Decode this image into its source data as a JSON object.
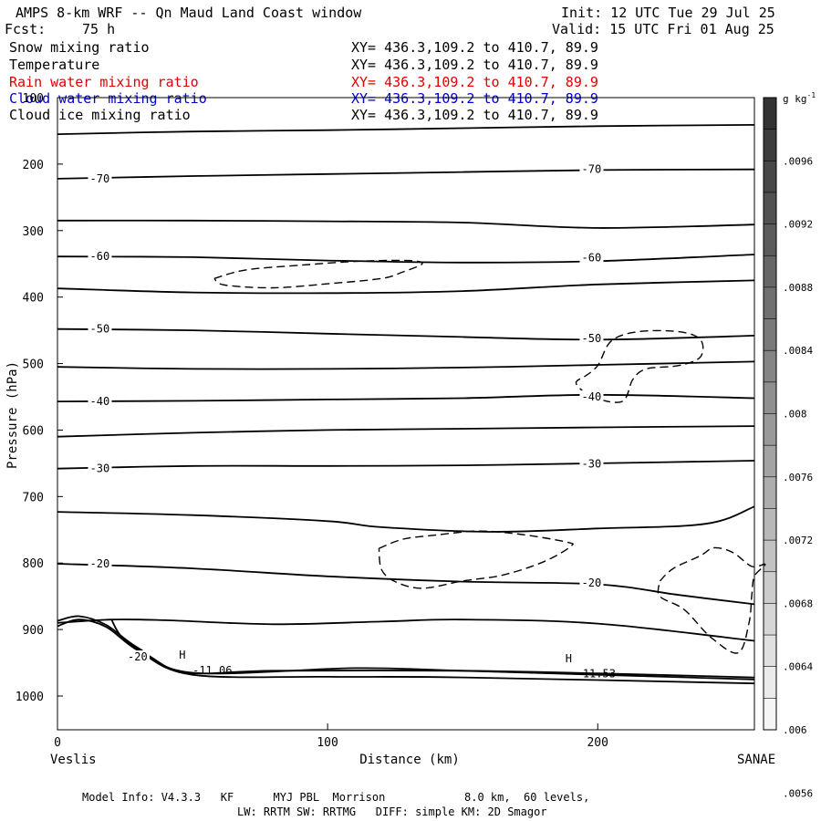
{
  "header": {
    "title": "AMPS 8-km WRF -- Qn Maud Land Coast window",
    "forecast_label": "Fcst:",
    "forecast_hours": "75 h",
    "init": "Init: 12 UTC Tue 29 Jul 25",
    "valid": "Valid: 15 UTC Fri 01 Aug 25"
  },
  "fields": [
    {
      "name": "Snow mixing ratio",
      "xy": "XY= 436.3,109.2 to 410.7, 89.9",
      "color": "#000000"
    },
    {
      "name": "Temperature",
      "xy": "XY= 436.3,109.2 to 410.7, 89.9",
      "color": "#000000"
    },
    {
      "name": "Rain water mixing ratio",
      "xy": "XY= 436.3,109.2 to 410.7, 89.9",
      "color": "#e00000"
    },
    {
      "name": "Cloud water mixing ratio",
      "xy": "XY= 436.3,109.2 to 410.7, 89.9",
      "color": "#0000cc"
    },
    {
      "name": "Cloud ice mixing ratio",
      "xy": "XY= 436.3,109.2 to 410.7, 89.9",
      "color": "#000000"
    }
  ],
  "footer": {
    "line1": "Model Info: V4.3.3   KF      MYJ PBL  Morrison            8.0 km,  60 levels,",
    "line2": "LW: RRTM SW: RRTMG   DIFF: simple KM: 2D Smagor"
  },
  "chart_data": {
    "type": "cross-section",
    "xlabel": "Distance (km)",
    "ylabel": "Pressure (hPa)",
    "xlim": [
      0,
      258
    ],
    "ylim": [
      1050,
      100
    ],
    "x_ticks": [
      0,
      100,
      200
    ],
    "y_ticks": [
      100,
      200,
      300,
      400,
      500,
      600,
      700,
      800,
      900,
      1000
    ],
    "x_start_label": "Veslis",
    "x_end_label": "SANAE",
    "colorbar": {
      "unit_label": "g kg",
      "unit_exponent": "-1",
      "tick_labels": [
        ".0096",
        ".0092",
        ".0088",
        ".0084",
        ".008",
        ".0076",
        ".0072",
        ".0068",
        ".0064",
        ".006",
        ".0056"
      ],
      "shades": [
        "#333333",
        "#3d3d3d",
        "#474747",
        "#525252",
        "#5c5c5c",
        "#666666",
        "#707070",
        "#7a7a7a",
        "#858585",
        "#8f8f8f",
        "#999999",
        "#a3a3a3",
        "#adadad",
        "#b8b8b8",
        "#c2c2c2",
        "#cccccc",
        "#d6d6d6",
        "#e0e0e0",
        "#ebebeb",
        "#f5f5f5"
      ]
    },
    "temperature_isotherms": [
      {
        "points": [
          [
            0,
            155
          ],
          [
            50,
            151
          ],
          [
            100,
            149
          ],
          [
            150,
            146
          ],
          [
            200,
            143
          ],
          [
            258,
            141
          ]
        ]
      },
      {
        "label": "-70",
        "label_positions": [
          [
            12,
            222
          ],
          [
            194,
            208
          ]
        ],
        "points": [
          [
            0,
            222
          ],
          [
            50,
            218
          ],
          [
            100,
            215
          ],
          [
            150,
            212
          ],
          [
            200,
            209
          ],
          [
            258,
            208
          ]
        ]
      },
      {
        "points": [
          [
            0,
            285
          ],
          [
            50,
            285
          ],
          [
            100,
            286
          ],
          [
            150,
            288
          ],
          [
            200,
            296
          ],
          [
            258,
            291
          ]
        ]
      },
      {
        "label": "-60",
        "label_positions": [
          [
            12,
            339
          ],
          [
            194,
            341
          ]
        ],
        "points": [
          [
            0,
            339
          ],
          [
            50,
            340
          ],
          [
            100,
            345
          ],
          [
            150,
            348
          ],
          [
            200,
            346
          ],
          [
            258,
            336
          ]
        ]
      },
      {
        "points": [
          [
            0,
            387
          ],
          [
            50,
            393
          ],
          [
            100,
            394
          ],
          [
            150,
            391
          ],
          [
            200,
            381
          ],
          [
            258,
            375
          ]
        ]
      },
      {
        "label": "-50",
        "label_positions": [
          [
            12,
            448
          ],
          [
            194,
            462
          ]
        ],
        "points": [
          [
            0,
            448
          ],
          [
            50,
            450
          ],
          [
            100,
            455
          ],
          [
            150,
            460
          ],
          [
            200,
            464
          ],
          [
            258,
            458
          ]
        ]
      },
      {
        "points": [
          [
            0,
            505
          ],
          [
            50,
            508
          ],
          [
            100,
            508
          ],
          [
            150,
            506
          ],
          [
            200,
            502
          ],
          [
            258,
            497
          ]
        ]
      },
      {
        "label": "-40",
        "label_positions": [
          [
            12,
            557
          ],
          [
            194,
            550
          ]
        ],
        "points": [
          [
            0,
            557
          ],
          [
            50,
            556
          ],
          [
            100,
            554
          ],
          [
            150,
            552
          ],
          [
            200,
            547
          ],
          [
            258,
            552
          ]
        ]
      },
      {
        "points": [
          [
            0,
            610
          ],
          [
            50,
            604
          ],
          [
            100,
            600
          ],
          [
            150,
            598
          ],
          [
            200,
            596
          ],
          [
            258,
            594
          ]
        ]
      },
      {
        "label": "-30",
        "label_positions": [
          [
            12,
            658
          ],
          [
            194,
            651
          ]
        ],
        "points": [
          [
            0,
            658
          ],
          [
            50,
            654
          ],
          [
            100,
            654
          ],
          [
            150,
            653
          ],
          [
            200,
            650
          ],
          [
            258,
            646
          ]
        ]
      },
      {
        "points": [
          [
            0,
            723
          ],
          [
            50,
            728
          ],
          [
            100,
            737
          ],
          [
            120,
            746
          ],
          [
            160,
            753
          ],
          [
            200,
            748
          ],
          [
            240,
            741
          ],
          [
            258,
            715
          ]
        ]
      },
      {
        "label": "-20",
        "label_positions": [
          [
            12,
            801
          ],
          [
            194,
            830
          ]
        ],
        "points": [
          [
            0,
            801
          ],
          [
            50,
            808
          ],
          [
            100,
            820
          ],
          [
            150,
            828
          ],
          [
            200,
            832
          ],
          [
            230,
            848
          ],
          [
            258,
            862
          ]
        ]
      },
      {
        "points": [
          [
            0,
            890
          ],
          [
            20,
            885
          ],
          [
            40,
            886
          ],
          [
            80,
            892
          ],
          [
            120,
            888
          ],
          [
            150,
            885
          ],
          [
            200,
            891
          ],
          [
            258,
            917
          ]
        ]
      },
      {
        "label": "-20",
        "label_positions": [
          [
            26,
            941
          ]
        ],
        "points": [
          [
            20,
            885
          ],
          [
            24,
            912
          ],
          [
            34,
            940
          ],
          [
            48,
            965
          ],
          [
            80,
            962
          ],
          [
            150,
            962
          ],
          [
            200,
            966
          ],
          [
            258,
            972
          ]
        ]
      },
      {
        "points": [
          [
            0,
            887
          ],
          [
            8,
            880
          ],
          [
            18,
            893
          ],
          [
            30,
            928
          ],
          [
            50,
            965
          ],
          [
            110,
            958
          ],
          [
            150,
            962
          ],
          [
            258,
            975
          ]
        ]
      },
      {
        "points": [
          [
            0,
            895
          ],
          [
            8,
            885
          ],
          [
            18,
            896
          ],
          [
            30,
            932
          ],
          [
            50,
            968
          ],
          [
            100,
            971
          ],
          [
            150,
            972
          ],
          [
            258,
            981
          ]
        ]
      }
    ],
    "cloud_ice_contours": [
      {
        "points": [
          [
            58,
            372
          ],
          [
            70,
            359
          ],
          [
            90,
            352
          ],
          [
            112,
            346
          ],
          [
            130,
            345
          ],
          [
            135,
            350
          ],
          [
            128,
            362
          ],
          [
            120,
            372
          ],
          [
            100,
            380
          ],
          [
            80,
            386
          ],
          [
            62,
            382
          ],
          [
            58,
            372
          ]
        ]
      },
      {
        "points": [
          [
            195,
            520
          ],
          [
            200,
            503
          ],
          [
            205,
            466
          ],
          [
            215,
            452
          ],
          [
            230,
            452
          ],
          [
            238,
            464
          ],
          [
            238,
            490
          ],
          [
            230,
            503
          ],
          [
            218,
            508
          ],
          [
            213,
            524
          ],
          [
            209,
            557
          ],
          [
            198,
            550
          ],
          [
            192,
            530
          ],
          [
            195,
            520
          ]
        ]
      },
      {
        "points": [
          [
            119,
            778
          ],
          [
            128,
            764
          ],
          [
            140,
            758
          ],
          [
            155,
            752
          ],
          [
            170,
            756
          ],
          [
            188,
            768
          ],
          [
            190,
            775
          ],
          [
            180,
            798
          ],
          [
            165,
            818
          ],
          [
            150,
            827
          ],
          [
            135,
            838
          ],
          [
            125,
            828
          ],
          [
            120,
            810
          ],
          [
            119,
            778
          ]
        ]
      },
      {
        "points": [
          [
            223,
            827
          ],
          [
            228,
            808
          ],
          [
            238,
            789
          ],
          [
            243,
            777
          ],
          [
            250,
            784
          ],
          [
            257,
            805
          ],
          [
            262,
            802
          ],
          [
            258,
            820
          ],
          [
            257,
            850
          ],
          [
            256,
            890
          ],
          [
            252,
            935
          ],
          [
            242,
            912
          ],
          [
            232,
            870
          ],
          [
            223,
            850
          ],
          [
            223,
            827
          ]
        ]
      }
    ],
    "annotations": [
      {
        "text": "H",
        "x": 45,
        "p": 944
      },
      {
        "text": "-11.06",
        "x": 50,
        "p": 967
      },
      {
        "text": "H",
        "x": 188,
        "p": 949
      },
      {
        "text": "-11.53",
        "x": 192,
        "p": 972
      }
    ]
  }
}
